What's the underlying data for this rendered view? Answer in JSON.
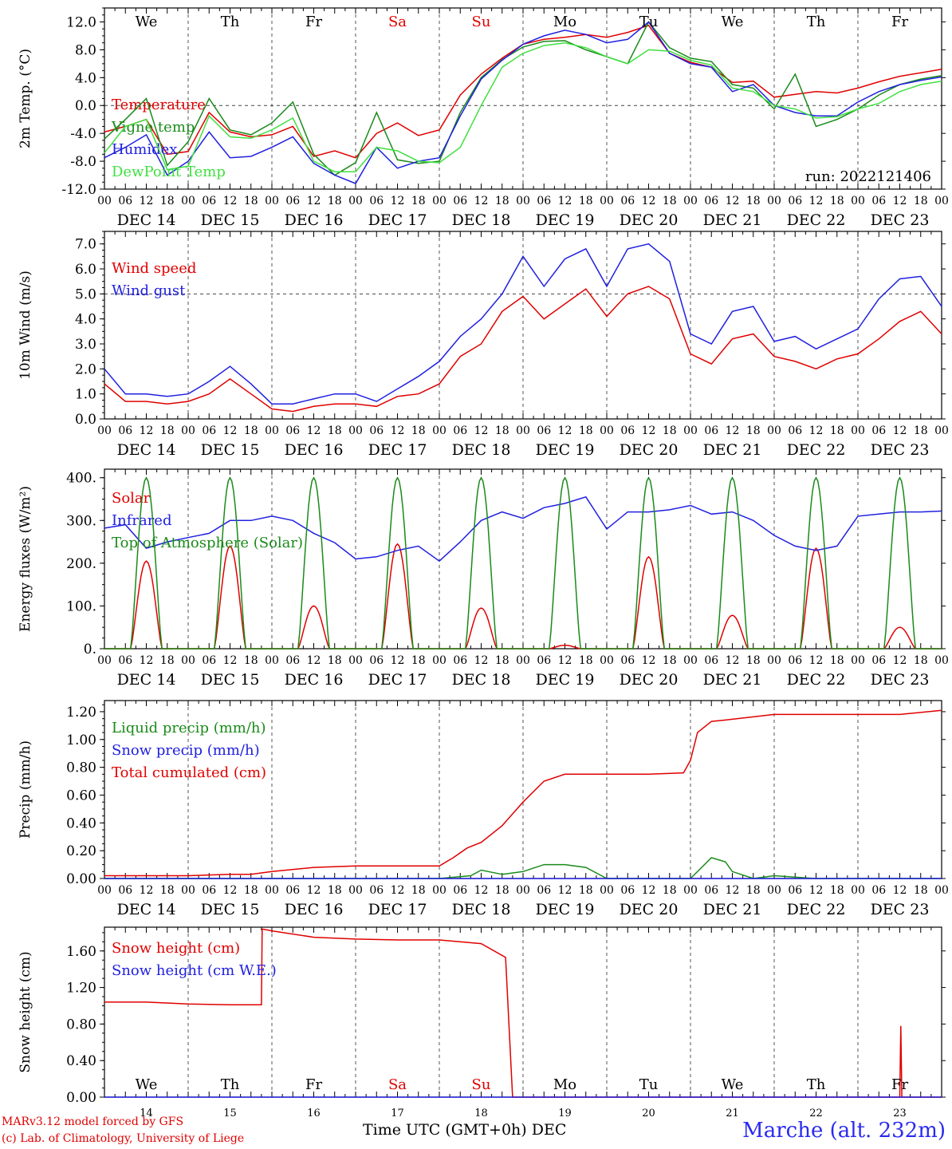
{
  "chart_data": [
    {
      "type": "line",
      "ylabel": "2m Temp. (°C)",
      "ylim": [
        -12,
        14
      ],
      "yticks": [
        "12.0",
        "8.0",
        "4.0",
        "0.0",
        "-4.0",
        "-8.0",
        "-12.0"
      ],
      "x_unit": "hours since 00 UTC 14 Dec",
      "run_label": "run: 2022121406",
      "series": [
        {
          "name": "Temperature",
          "color": "#e00000",
          "x": [
            0,
            6,
            12,
            18,
            24,
            30,
            36,
            42,
            48,
            54,
            60,
            66,
            72,
            78,
            84,
            90,
            96,
            102,
            108,
            114,
            120,
            126,
            132,
            138,
            144,
            150,
            156,
            162,
            168,
            174,
            180,
            186,
            192,
            198,
            204,
            210,
            216,
            222,
            228,
            234,
            240
          ],
          "y": [
            -3.8,
            -3.0,
            -2.0,
            -7.0,
            -6.6,
            -1.0,
            -3.8,
            -4.5,
            -4.2,
            -3.0,
            -7.3,
            -6.5,
            -7.5,
            -4.0,
            -2.5,
            -4.3,
            -3.5,
            1.5,
            4.5,
            6.8,
            8.8,
            9.5,
            9.8,
            10.2,
            9.8,
            10.5,
            11.5,
            7.5,
            6.2,
            5.5,
            3.3,
            3.5,
            1.2,
            1.6,
            2.0,
            1.8,
            2.5,
            3.4,
            4.2,
            4.7,
            5.2
          ]
        },
        {
          "name": "Vigne temp",
          "color": "#1a8a1a",
          "x": [
            0,
            6,
            12,
            18,
            24,
            30,
            36,
            42,
            48,
            54,
            60,
            66,
            72,
            78,
            84,
            90,
            96,
            102,
            108,
            114,
            120,
            126,
            132,
            138,
            144,
            150,
            156,
            162,
            168,
            174,
            180,
            186,
            192,
            198,
            204,
            210,
            216,
            222,
            228,
            234,
            240
          ],
          "y": [
            -4.8,
            -2.0,
            1.0,
            -8.6,
            -5.2,
            1.0,
            -3.5,
            -4.2,
            -2.5,
            0.5,
            -7.0,
            -10.0,
            -8.2,
            -1.0,
            -7.8,
            -8.3,
            -8.0,
            -1.0,
            4.0,
            6.6,
            8.4,
            9.2,
            9.3,
            8.0,
            7.0,
            6.0,
            12.0,
            8.3,
            6.8,
            6.3,
            3.0,
            2.5,
            -0.5,
            4.5,
            -3.0,
            -2.0,
            -0.5,
            1.5,
            3.0,
            3.8,
            4.3
          ]
        },
        {
          "name": "Humidex",
          "color": "#2020e0",
          "x": [
            0,
            6,
            12,
            18,
            24,
            30,
            36,
            42,
            48,
            54,
            60,
            66,
            72,
            78,
            84,
            90,
            96,
            102,
            108,
            114,
            120,
            126,
            132,
            138,
            144,
            150,
            156,
            162,
            168,
            174,
            180,
            186,
            192,
            198,
            204,
            210,
            216,
            222,
            228,
            234,
            240
          ],
          "y": [
            -7.5,
            -6.0,
            -4.2,
            -10.0,
            -8.0,
            -3.8,
            -7.5,
            -7.3,
            -6.0,
            -4.5,
            -8.3,
            -10.0,
            -11.2,
            -6.0,
            -9.0,
            -8.0,
            -7.5,
            -1.5,
            3.8,
            6.5,
            8.8,
            10.0,
            10.8,
            10.2,
            9.0,
            9.5,
            12.0,
            7.5,
            6.0,
            5.5,
            2.0,
            3.0,
            0.0,
            -1.0,
            -1.5,
            -1.5,
            0.5,
            2.0,
            3.0,
            3.6,
            4.1
          ]
        },
        {
          "name": "DewPoint Temp",
          "color": "#40e040",
          "x": [
            0,
            6,
            12,
            18,
            24,
            30,
            36,
            42,
            48,
            54,
            60,
            66,
            72,
            78,
            84,
            90,
            96,
            102,
            108,
            114,
            120,
            126,
            132,
            138,
            144,
            150,
            156,
            162,
            168,
            174,
            180,
            186,
            192,
            198,
            204,
            210,
            216,
            222,
            228,
            234,
            240
          ],
          "y": [
            -6.8,
            -3.0,
            -2.0,
            -9.2,
            -8.7,
            -1.5,
            -4.5,
            -4.7,
            -3.5,
            -1.8,
            -8.0,
            -9.5,
            -9.5,
            -6.0,
            -6.5,
            -8.0,
            -8.2,
            -6.0,
            0.0,
            5.5,
            7.5,
            8.6,
            9.0,
            8.3,
            7.0,
            6.0,
            8.0,
            7.8,
            6.5,
            5.8,
            2.5,
            2.0,
            0.0,
            -0.5,
            -1.8,
            -1.6,
            -0.5,
            0.3,
            2.0,
            3.0,
            3.5
          ]
        }
      ]
    },
    {
      "type": "line",
      "ylabel": "10m Wind (m/s)",
      "ylim": [
        0,
        7.5
      ],
      "yticks": [
        "7.0",
        "6.0",
        "5.0",
        "4.0",
        "3.0",
        "2.0",
        "1.0",
        "0.0"
      ],
      "reference_line": 5,
      "series": [
        {
          "name": "Wind speed",
          "color": "#e00000",
          "x": [
            0,
            6,
            12,
            18,
            24,
            30,
            36,
            42,
            48,
            54,
            60,
            66,
            72,
            78,
            84,
            90,
            96,
            102,
            108,
            114,
            120,
            126,
            132,
            138,
            144,
            150,
            156,
            162,
            168,
            174,
            180,
            186,
            192,
            198,
            204,
            210,
            216,
            222,
            228,
            234,
            240
          ],
          "y": [
            1.4,
            0.7,
            0.7,
            0.6,
            0.7,
            1.0,
            1.6,
            1.0,
            0.4,
            0.3,
            0.5,
            0.6,
            0.6,
            0.5,
            0.9,
            1.0,
            1.4,
            2.5,
            3.0,
            4.3,
            4.9,
            4.0,
            4.6,
            5.2,
            4.1,
            5.0,
            5.3,
            4.8,
            2.6,
            2.2,
            3.2,
            3.4,
            2.5,
            2.3,
            2.0,
            2.4,
            2.6,
            3.2,
            3.9,
            4.3,
            3.4
          ]
        },
        {
          "name": "Wind gust",
          "color": "#2020e0",
          "x": [
            0,
            6,
            12,
            18,
            24,
            30,
            36,
            42,
            48,
            54,
            60,
            66,
            72,
            78,
            84,
            90,
            96,
            102,
            108,
            114,
            120,
            126,
            132,
            138,
            144,
            150,
            156,
            162,
            168,
            174,
            180,
            186,
            192,
            198,
            204,
            210,
            216,
            222,
            228,
            234,
            240
          ],
          "y": [
            2.0,
            1.0,
            1.0,
            0.9,
            1.0,
            1.5,
            2.1,
            1.4,
            0.6,
            0.6,
            0.8,
            1.0,
            1.0,
            0.7,
            1.2,
            1.7,
            2.3,
            3.3,
            4.0,
            5.0,
            6.5,
            5.3,
            6.4,
            6.8,
            5.3,
            6.8,
            7.0,
            6.3,
            3.4,
            3.0,
            4.3,
            4.5,
            3.1,
            3.3,
            2.8,
            3.2,
            3.6,
            4.8,
            5.6,
            5.7,
            4.5
          ]
        }
      ]
    },
    {
      "type": "line",
      "ylabel": "Energy fluxes (W/m²)",
      "ylim": [
        0,
        420
      ],
      "yticks": [
        "400.",
        "300.",
        "200.",
        "100.",
        "0."
      ],
      "series": [
        {
          "name": "Solar",
          "color": "#e00000",
          "daily_peak": [
            205,
            240,
            100,
            245,
            95,
            8,
            215,
            78,
            235,
            50
          ],
          "day_start_hour": 7.5,
          "day_length_hours": 9
        },
        {
          "name": "Infrared",
          "color": "#2020e0",
          "x": [
            0,
            6,
            12,
            18,
            24,
            30,
            36,
            42,
            48,
            54,
            60,
            66,
            72,
            78,
            84,
            90,
            96,
            102,
            108,
            114,
            120,
            126,
            132,
            138,
            144,
            150,
            156,
            162,
            168,
            174,
            180,
            186,
            192,
            198,
            204,
            210,
            216,
            222,
            228,
            234,
            240
          ],
          "y": [
            282,
            290,
            235,
            250,
            260,
            270,
            300,
            300,
            310,
            300,
            270,
            248,
            210,
            215,
            230,
            240,
            205,
            250,
            300,
            320,
            305,
            330,
            340,
            355,
            280,
            320,
            320,
            325,
            335,
            315,
            320,
            300,
            265,
            240,
            230,
            240,
            310,
            315,
            320,
            320,
            322
          ]
        },
        {
          "name": "Top of Atmosphere (Solar)",
          "color": "#1a8a1a",
          "daily_peak": [
            400,
            400,
            400,
            400,
            400,
            400,
            400,
            400,
            400,
            400
          ],
          "day_start_hour": 7.5,
          "day_length_hours": 9
        }
      ]
    },
    {
      "type": "line",
      "ylabel": "Precip (mm/h)",
      "ylim": [
        0,
        1.28
      ],
      "yticks": [
        "1.20",
        "1.00",
        "0.80",
        "0.60",
        "0.40",
        "0.20",
        "0.00"
      ],
      "series": [
        {
          "name": "Liquid precip (mm/h)",
          "color": "#1a8a1a",
          "x": [
            0,
            96,
            105,
            108,
            114,
            120,
            126,
            132,
            138,
            144,
            156,
            168,
            174,
            178,
            180,
            186,
            192,
            204,
            216,
            228,
            240
          ],
          "y": [
            0,
            0,
            0.02,
            0.06,
            0.03,
            0.05,
            0.1,
            0.1,
            0.08,
            0,
            0,
            0,
            0.15,
            0.12,
            0.05,
            0,
            0.02,
            0,
            0,
            0,
            0
          ]
        },
        {
          "name": "Snow precip (mm/h)",
          "color": "#2020e0",
          "x": [
            0,
            240
          ],
          "y": [
            0,
            0
          ]
        },
        {
          "name": "Total cumulated (cm)",
          "color": "#e00000",
          "x": [
            0,
            24,
            36,
            42,
            48,
            60,
            72,
            84,
            96,
            100,
            104,
            108,
            114,
            120,
            126,
            132,
            138,
            144,
            156,
            166,
            168,
            170,
            174,
            178,
            192,
            216,
            228,
            240
          ],
          "y": [
            0.02,
            0.02,
            0.03,
            0.03,
            0.05,
            0.08,
            0.09,
            0.09,
            0.09,
            0.15,
            0.22,
            0.26,
            0.38,
            0.55,
            0.7,
            0.75,
            0.75,
            0.75,
            0.75,
            0.76,
            0.85,
            1.05,
            1.13,
            1.14,
            1.18,
            1.18,
            1.18,
            1.21
          ]
        }
      ]
    },
    {
      "type": "line",
      "ylabel": "Snow height (cm)",
      "ylim": [
        0,
        1.86
      ],
      "yticks": [
        "1.60",
        "1.20",
        "0.80",
        "0.40",
        "0.00"
      ],
      "series": [
        {
          "name": "Snow height (cm)",
          "color": "#e00000",
          "x": [
            0,
            12,
            24,
            36,
            45,
            45.2,
            48,
            60,
            72,
            84,
            96,
            108,
            115,
            117,
            117.2,
            228,
            228.3,
            228.6,
            240
          ],
          "y": [
            1.04,
            1.04,
            1.02,
            1.01,
            1.01,
            1.84,
            1.82,
            1.75,
            1.73,
            1.72,
            1.72,
            1.68,
            1.53,
            0.0,
            0.0,
            0.0,
            0.78,
            0.0,
            0.0
          ]
        },
        {
          "name": "Snow height (cm W.E.)",
          "color": "#2020e0",
          "x": [
            0,
            240
          ],
          "y": [
            0,
            0
          ]
        }
      ]
    }
  ],
  "x_axis": {
    "hour_ticks": [
      "00",
      "06",
      "12",
      "18"
    ],
    "final_tick": "00",
    "dates": [
      "DEC 14",
      "DEC 15",
      "DEC 16",
      "DEC 17",
      "DEC 18",
      "DEC 19",
      "DEC 20",
      "DEC 21",
      "DEC 22",
      "DEC 23"
    ],
    "weekdays": [
      "We",
      "Th",
      "Fr",
      "Sa",
      "Su",
      "Mo",
      "Tu",
      "We",
      "Th",
      "Fr"
    ],
    "weekend_color": "#e00000",
    "day_numbers": [
      "14",
      "15",
      "16",
      "17",
      "18",
      "19",
      "20",
      "21",
      "22",
      "23"
    ],
    "title": "Time UTC (GMT+0h)",
    "month": "DEC"
  },
  "footer": {
    "credit_line1": "MARv3.12 model forced by GFS",
    "credit_line2": "(c) Lab. of Climatology, University of Liege",
    "station": "Marche (alt. 232m)"
  }
}
